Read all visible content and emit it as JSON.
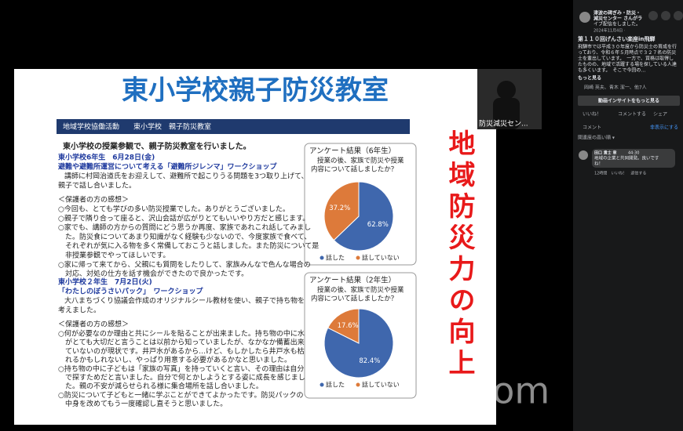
{
  "slide": {
    "title": "東小学校親子防災教室",
    "banner": "地域学校協働活動　　東小学校　親子防災教室",
    "lead": "東小学校の授業参観で、親子防災教室を行いました。",
    "sections": [
      {
        "heading": "東小学校6年生　6月28日(金)",
        "subheading": "避難や避難所運営について考える「避難所ジレンマ」ワークショップ",
        "body": [
          "講師に村岡治道氏をお迎えして、避難所で起こりうる問題を3つ取り上げて、",
          "親子で話し合いました。"
        ],
        "impressions_title": "＜保護者の方の感想＞",
        "impressions": [
          "○今回も、とても学びの多い防災授業でした。ありがとうございました。",
          "○親子で隣り合って座ると、沢山会話が広がりとてもいいやり方だと感じます。",
          "○家でも、講師の方からの質問にどう思うか再度、家族であれこれ話してみまし",
          "　た。防災食についてあまり知識がなく経験も少ないので、今度家族で食べて、",
          "　それぞれが気に入る物を多く常備しておこうと話しました。また防災について是",
          "　非授業参観でやってほしいです。",
          "○家に帰って来てから、父親にも質問をしたりして、家族みんなで色んな場合の",
          "　対応、対処の仕方を話す機会ができたので良かったです。"
        ]
      },
      {
        "heading": "東小学校２年生　7月2日(火)",
        "subheading": "「わたしのぼうさいパック」　ワークショップ",
        "body": [
          "大八まちづくり協議会作成のオリジナルシール教材を使い、親子で持ち物を",
          "考えました。"
        ],
        "impressions_title": "＜保護者の方の感想＞",
        "impressions": [
          "○何が必要なのか理由と共にシールを貼ることが出来ました。持ち物の中に水",
          "　がとても大切だと言うことは以前から知っていましたが、なかなか備蓄出来",
          "　ていないのが現状です。井戸水があるから…けど、もしかしたら井戸水も枯",
          "　れるかもしれないし、やっぱり用意する必要があるかなと思いました。",
          "○持ち物の中に子どもは「家族の写真」を持っていくと言い、その理由は自分",
          "　で探すためだと言いました。自分で何とかしようとする姿に成長を感じまし",
          "　た。親の不安が減らせられる様に集合場所を話し合いました。",
          "○防災について子どもと一緒に学ぶことができてよかったです。防災パックの",
          "　中身を改めてもう一度確認し直そうと思いました。"
        ]
      }
    ]
  },
  "side_caption": "地域防災力の向上",
  "video": {
    "participant": "防災減災セン..."
  },
  "zoom_logo": "zoom",
  "facebook": {
    "page_lines": [
      "津波の碑ぎみ・防災・",
      "減災センター さんがラ",
      "イブ配信をしました。"
    ],
    "date": "2024年11月4日 ·",
    "post_title": "第１１０回げんさい楽座in飛騨",
    "post_lines": [
      "飛騨市では平成３０年度から防災士の育成を行",
      "っており、令和６年５月時点で３２７名の防災",
      "士を輩出しています。　一方で、資格は取得し",
      "たものの、地域で活躍する場を探している人達",
      "も多くいます。　そこで今回の…"
    ],
    "more": "もっと見る",
    "reactions": "岡崎 英夫、青木 潔一、他7人",
    "insights": "動画インサイトをもっと見る",
    "actions": [
      "いいね！",
      "コメントする",
      "シェア"
    ],
    "comments_label": "コメント",
    "hide": "非表示にする",
    "sort": "関連度の高い順 ▾",
    "comment": {
      "author": "田口 貴士 章",
      "time": "44:30",
      "lines": [
        "地域の企業と共同開発。良いです",
        "ね！"
      ],
      "meta": "12時間　いいね！　返信する"
    }
  },
  "chart_data": [
    {
      "type": "pie",
      "title": "アンケート結果（6年生）",
      "subtitle": [
        "授業の後、家族で防災や授業",
        "内容について話しましたか？"
      ],
      "categories": [
        "話した",
        "話していない"
      ],
      "values": [
        62.8,
        37.2
      ],
      "value_labels": [
        "62.8%",
        "37.2%"
      ],
      "colors": [
        "#3f67ad",
        "#dd7a3a"
      ]
    },
    {
      "type": "pie",
      "title": "アンケート結果（2年生）",
      "subtitle": [
        "授業の後、家族で防災や授業",
        "内容について話しましたか？"
      ],
      "categories": [
        "話した",
        "話していない"
      ],
      "values": [
        82.4,
        17.6
      ],
      "value_labels": [
        "82.4%",
        "17.6%"
      ],
      "colors": [
        "#3f67ad",
        "#dd7a3a"
      ]
    }
  ]
}
